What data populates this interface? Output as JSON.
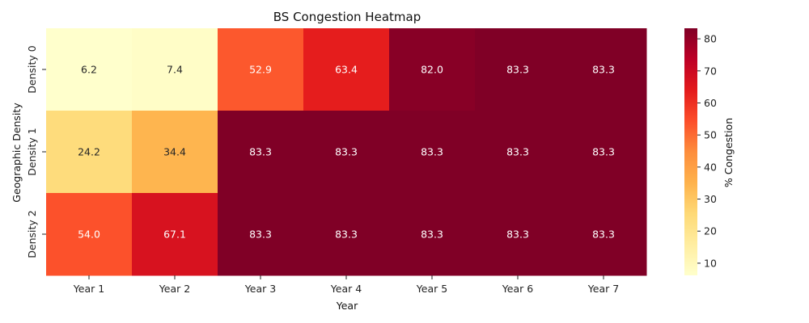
{
  "chart_data": {
    "type": "heatmap",
    "title": "BS Congestion Heatmap",
    "xlabel": "Year",
    "ylabel": "Geographic Density",
    "x_categories": [
      "Year 1",
      "Year 2",
      "Year 3",
      "Year 4",
      "Year 5",
      "Year 6",
      "Year 7"
    ],
    "y_categories": [
      "Density 0",
      "Density 1",
      "Density 2"
    ],
    "values": [
      [
        6.2,
        7.4,
        52.9,
        63.4,
        82.0,
        83.3,
        83.3
      ],
      [
        24.2,
        34.4,
        83.3,
        83.3,
        83.3,
        83.3,
        83.3
      ],
      [
        54.0,
        67.1,
        83.3,
        83.3,
        83.3,
        83.3,
        83.3
      ]
    ],
    "colorbar": {
      "label": "% Congestion",
      "ticks": [
        10,
        20,
        30,
        40,
        50,
        60,
        70,
        80
      ],
      "range": [
        6.2,
        83.3
      ],
      "colormap": "YlOrRd"
    }
  }
}
